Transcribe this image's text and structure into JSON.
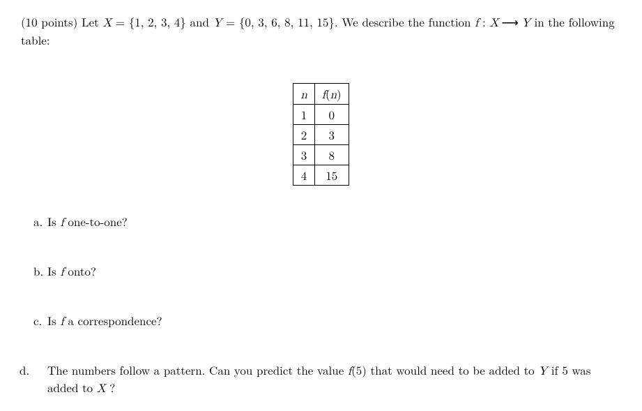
{
  "intro": {
    "points_prefix": "(10 points) Let ",
    "X_label": "X",
    "eq1": " = {1, 2, 3, 4} and ",
    "Y_label": "Y",
    "eq2": " = {0, 3, 6, 8, 11, 15}.  We describe the function ",
    "f_label": "f",
    "colon": " : ",
    "arrow_txt": " ⟶ ",
    "tail": " in the following table:"
  },
  "table": {
    "header_n": "n",
    "header_fn_before": "f",
    "header_fn_paren_open": "(",
    "header_fn_var": "n",
    "header_fn_paren_close": ")",
    "rows": [
      {
        "n": "1",
        "fn": "0"
      },
      {
        "n": "2",
        "fn": "3"
      },
      {
        "n": "3",
        "fn": "8"
      },
      {
        "n": "4",
        "fn": "15"
      }
    ]
  },
  "parts": {
    "a": {
      "label": "a.",
      "before": "Is ",
      "f": "f",
      "after": " one-to-one?"
    },
    "b": {
      "label": "b.",
      "before": "Is ",
      "f": "f",
      "after": " onto?"
    },
    "c": {
      "label": "c.",
      "before": "Is ",
      "f": "f",
      "after": " a correspondence?"
    },
    "d": {
      "label": "d.",
      "t1": "The numbers follow a pattern. Can you predict the value ",
      "f": "f",
      "arg": "(5)",
      "t2": " that would need to be added to ",
      "Y": "Y",
      "t3": " if 5 was added to ",
      "X": "X",
      "t4": " ?"
    }
  }
}
